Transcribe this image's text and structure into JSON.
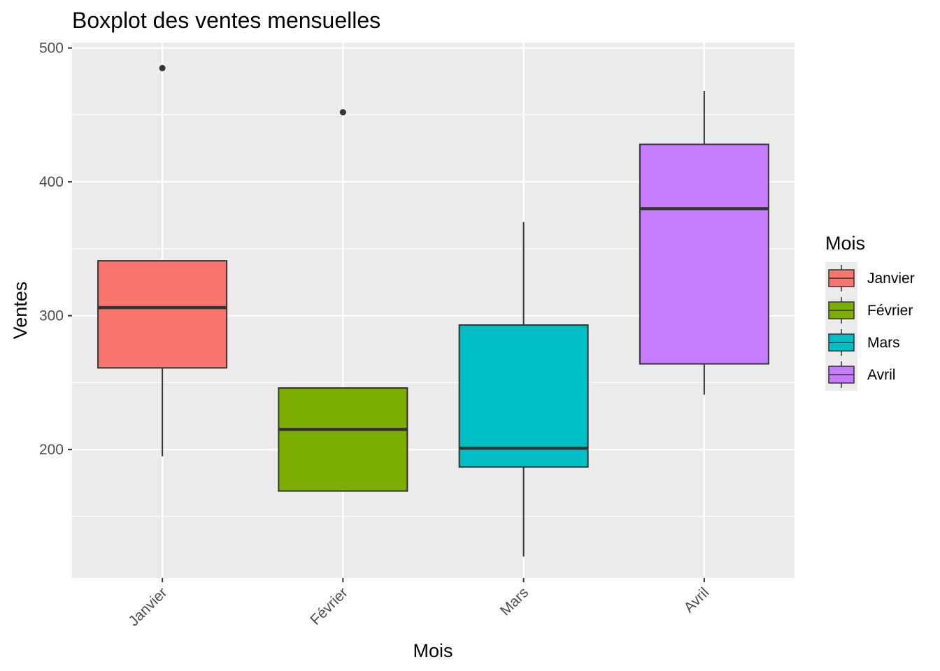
{
  "chart_data": {
    "type": "boxplot",
    "title": "Boxplot des ventes mensuelles",
    "xlabel": "Mois",
    "ylabel": "Ventes",
    "ylim": [
      104,
      504
    ],
    "yticks": [
      200,
      300,
      400,
      500
    ],
    "y_minor_ticks": [
      150,
      250,
      350,
      450
    ],
    "categories": [
      "Janvier",
      "Février",
      "Mars",
      "Avril"
    ],
    "boxes": [
      {
        "category": "Janvier",
        "color": "#F8766D",
        "whisker_low": 195,
        "q1": 261,
        "median": 306,
        "q3": 341,
        "whisker_high": 341,
        "outliers": [
          485
        ]
      },
      {
        "category": "Février",
        "color": "#7CAE00",
        "whisker_low": 169,
        "q1": 169,
        "median": 215,
        "q3": 246,
        "whisker_high": 246,
        "outliers": [
          452
        ]
      },
      {
        "category": "Mars",
        "color": "#00BFC4",
        "whisker_low": 120,
        "q1": 187,
        "median": 201,
        "q3": 293,
        "whisker_high": 370,
        "outliers": []
      },
      {
        "category": "Avril",
        "color": "#C77CFF",
        "whisker_low": 241,
        "q1": 264,
        "median": 380,
        "q3": 428,
        "whisker_high": 468,
        "outliers": []
      }
    ],
    "legend": {
      "title": "Mois",
      "position": "right",
      "items": [
        {
          "label": "Janvier",
          "color": "#F8766D"
        },
        {
          "label": "Février",
          "color": "#7CAE00"
        },
        {
          "label": "Mars",
          "color": "#00BFC4"
        },
        {
          "label": "Avril",
          "color": "#C77CFF"
        }
      ]
    },
    "panel_background": "#EBEBEB",
    "grid": true
  }
}
